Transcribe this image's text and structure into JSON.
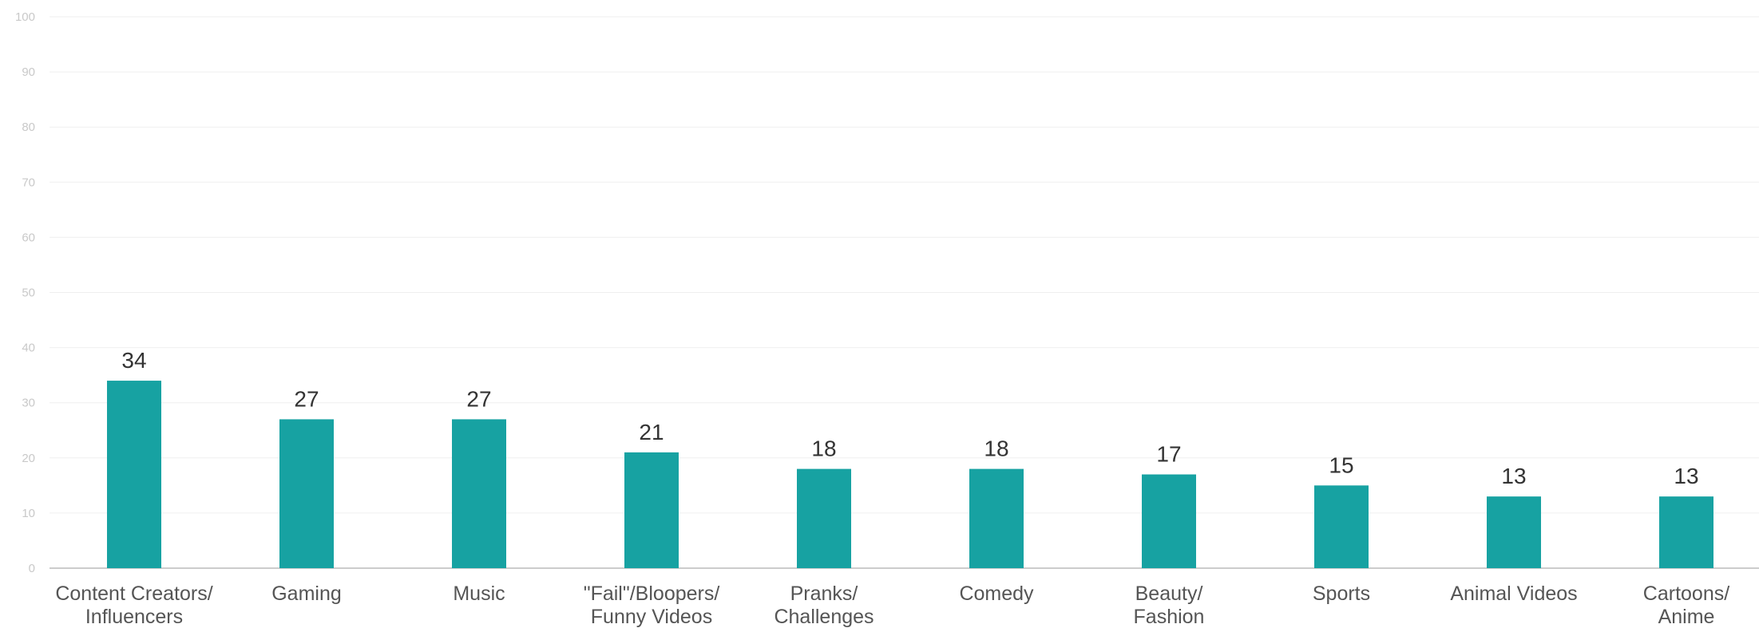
{
  "chart_data": {
    "type": "bar",
    "title": "",
    "xlabel": "",
    "ylabel": "",
    "categories": [
      [
        "Content Creators/",
        "Influencers"
      ],
      [
        "Gaming"
      ],
      [
        "Music"
      ],
      [
        "\"Fail\"/Bloopers/",
        "Funny Videos"
      ],
      [
        "Pranks/",
        "Challenges"
      ],
      [
        "Comedy"
      ],
      [
        "Beauty/",
        "Fashion"
      ],
      [
        "Sports"
      ],
      [
        "Animal Videos"
      ],
      [
        "Cartoons/",
        "Anime"
      ]
    ],
    "values": [
      34,
      27,
      27,
      21,
      18,
      18,
      17,
      15,
      13,
      13
    ],
    "ylim": [
      0,
      100
    ],
    "yticks": [
      0,
      10,
      20,
      30,
      40,
      50,
      60,
      70,
      80,
      90,
      100
    ],
    "grid": true,
    "legend": "none",
    "bar_color": "#17a2a2",
    "data_labels": [
      "34",
      "27",
      "27",
      "21",
      "18",
      "18",
      "17",
      "15",
      "13",
      "13"
    ]
  }
}
